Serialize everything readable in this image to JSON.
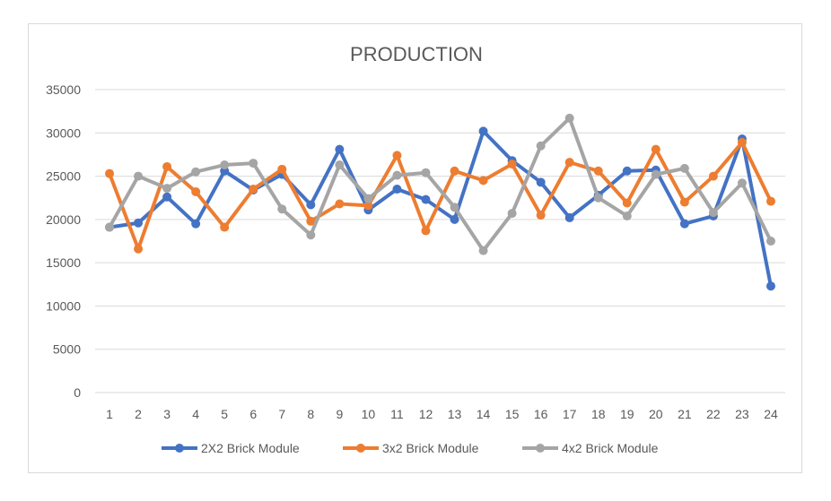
{
  "chart_data": {
    "type": "line",
    "title": "PRODUCTION",
    "xlabel": "",
    "ylabel": "",
    "x": [
      "1",
      "2",
      "3",
      "4",
      "5",
      "6",
      "7",
      "8",
      "9",
      "10",
      "11",
      "12",
      "13",
      "14",
      "15",
      "16",
      "17",
      "18",
      "19",
      "20",
      "21",
      "22",
      "23",
      "24"
    ],
    "y_ticks": [
      "0",
      "5000",
      "10000",
      "15000",
      "20000",
      "25000",
      "30000",
      "35000"
    ],
    "ylim": [
      0,
      35000
    ],
    "grid": true,
    "legend_position": "bottom",
    "series": [
      {
        "name": "2X2 Brick Module",
        "color": "#4472c4",
        "values": [
          19100,
          19600,
          22600,
          19500,
          25600,
          23400,
          25200,
          21700,
          28100,
          21100,
          23500,
          22300,
          20000,
          30200,
          26800,
          24300,
          20200,
          22800,
          25600,
          25700,
          19500,
          20400,
          29300,
          12300
        ]
      },
      {
        "name": "3x2 Brick Module",
        "color": "#ed7d31",
        "values": [
          25300,
          16600,
          26100,
          23200,
          19100,
          23500,
          25800,
          19800,
          21800,
          21600,
          27400,
          18700,
          25600,
          24500,
          26400,
          20500,
          26600,
          25600,
          21900,
          28100,
          22000,
          25000,
          28900,
          22100
        ]
      },
      {
        "name": "4x2 Brick Module",
        "color": "#a5a5a5",
        "values": [
          19100,
          25000,
          23600,
          25500,
          26300,
          26500,
          21200,
          18200,
          26300,
          22400,
          25100,
          25400,
          21400,
          16400,
          20700,
          28500,
          31700,
          22500,
          20400,
          25200,
          25900,
          20800,
          24200,
          17500
        ]
      }
    ]
  }
}
